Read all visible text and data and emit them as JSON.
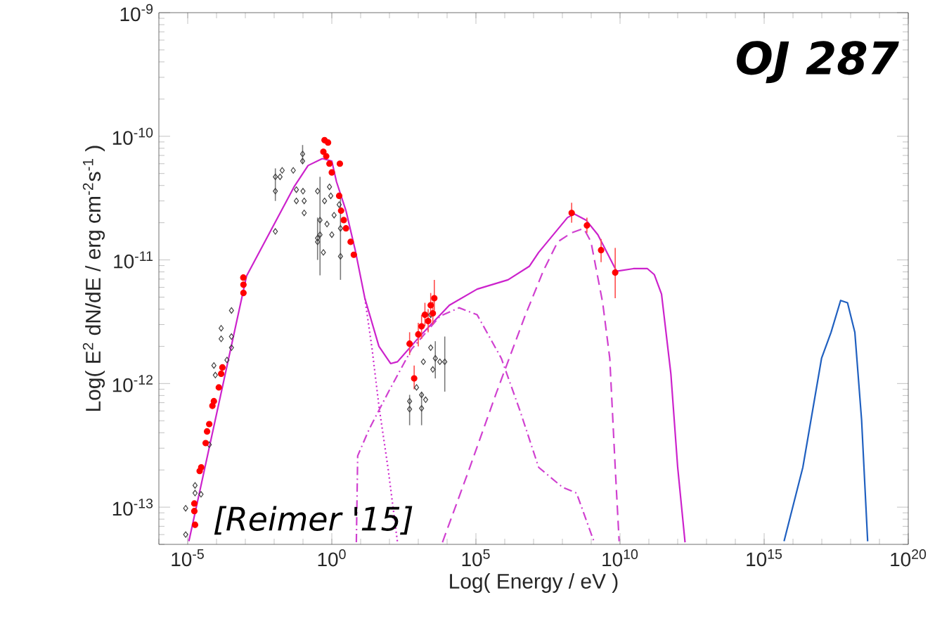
{
  "chart_data": {
    "type": "line",
    "xlabel": "Log( Energy / eV )",
    "ylabel": "Log( E$^{2}$ dN/dE /  erg cm$^{-2}$s$^{-1}$ )",
    "log": "xy",
    "grid": false,
    "xlim": [
      1e-06,
      1e+20
    ],
    "ylim": [
      5e-14,
      1e-09
    ],
    "xticks": [
      {
        "value": 1e-05,
        "label": "10$^{-5}$"
      },
      {
        "value": 1,
        "label": "10$^{0}$"
      },
      {
        "value": 100000.0,
        "label": "10$^{5}$"
      },
      {
        "value": 10000000000.0,
        "label": "10$^{10}$"
      },
      {
        "value": 1000000000000000.0,
        "label": "10$^{15}$"
      },
      {
        "value": 1e+20,
        "label": "10$^{20}$"
      }
    ],
    "yticks": [
      {
        "value": 1e-13,
        "label": "10$^{-13}$"
      },
      {
        "value": 1e-12,
        "label": "10$^{-12}$"
      },
      {
        "value": 1e-11,
        "label": "10$^{-11}$"
      },
      {
        "value": 1e-10,
        "label": "10$^{-10}$"
      },
      {
        "value": 1e-09,
        "label": "10$^{-9}$"
      }
    ],
    "annotations": [
      "OJ 287",
      "[Reimer '15]"
    ],
    "series": [
      {
        "color": "#cc22cc",
        "line_style": "solid",
        "marker": "none",
        "x": [
          1.1e-05,
          0.0011,
          0.049,
          0.15,
          0.47,
          1,
          1.45,
          3.1,
          6.5,
          14,
          43,
          110,
          190,
          1300,
          12000,
          110000,
          1300000.0,
          7200000.0,
          15000000.0,
          150000000.0,
          260000000.0,
          660000000.0,
          1700000000.0,
          7600000000.0,
          29000000000.0,
          89000000000.0,
          155000000000.0,
          275000000000.0,
          580000000000.0,
          1000000000000.0,
          1800000000000.0
        ],
        "values": [
          5.3e-14,
          7.4e-12,
          3.9e-11,
          5.8e-11,
          6.6e-11,
          6.3e-11,
          4.3e-11,
          2.5e-11,
          1.2e-11,
          4.9e-12,
          2e-12,
          1.45e-12,
          1.5e-12,
          2.5e-12,
          4.3e-12,
          5.8e-12,
          6.9e-12,
          8.9e-12,
          1.15e-11,
          2.2e-11,
          2.35e-11,
          2.1e-11,
          1.6e-11,
          8.1e-12,
          8.5e-12,
          8.5e-12,
          7.6e-12,
          5.3e-12,
          1.2e-12,
          2.1e-13,
          5.2e-14
        ]
      },
      {
        "color": "#cc22cc",
        "line_style": "dotted",
        "marker": "none",
        "x": [
          14,
          25,
          43,
          91,
          190
        ],
        "values": [
          4.9e-12,
          1.9e-12,
          6.6e-13,
          2e-13,
          5.2e-14
        ]
      },
      {
        "color": "#d040d0",
        "line_style": "dashdot",
        "marker": "none",
        "x": [
          7.1,
          7.9,
          20,
          91,
          590,
          5600,
          26000,
          110000,
          760000,
          3400000.0,
          15000000.0,
          100000000.0,
          310000000.0,
          1200000000.0
        ],
        "values": [
          5.2e-14,
          2.6e-13,
          4.3e-13,
          8.5e-13,
          1.9e-12,
          3.5e-12,
          4.1e-12,
          3.6e-12,
          1.6e-12,
          6e-13,
          2.1e-13,
          1.45e-13,
          1.3e-13,
          5.4e-14
        ]
      },
      {
        "color": "#d040d0",
        "line_style": "dashed",
        "marker": "none",
        "x": [
          6900,
          55000,
          520000,
          5000000.0,
          22000000.0,
          69000000.0,
          210000000.0,
          550000000.0,
          980000000.0,
          2500000000.0,
          4400000000.0,
          6800000000.0,
          9300000000.0
        ],
        "values": [
          5.2e-14,
          1.95e-13,
          8.5e-13,
          3.5e-12,
          8.2e-12,
          1.4e-11,
          1.66e-11,
          1.8e-11,
          1.4e-11,
          4.5e-12,
          1.6e-12,
          2.1e-13,
          5.3e-14
        ]
      },
      {
        "color": "#2060c0",
        "line_style": "solid",
        "marker": "none",
        "x": [
          4900000000000000.0,
          2.2e+16,
          9.8e+16,
          2.1e+17,
          4.5e+17,
          7.8e+17,
          1.4e+18,
          2.4e+18,
          3.9e+18
        ],
        "values": [
          5.3e-14,
          2.1e-13,
          1.6e-12,
          2.6e-12,
          4.7e-12,
          4.5e-12,
          2.6e-12,
          5.1e-13,
          5.3e-14
        ]
      },
      {
        "type": "scatter",
        "color": "#404040",
        "marker": "diamond",
        "x": [
          8.5e-06,
          8.5e-06,
          1.8e-05,
          1.8e-05,
          2.9e-05,
          3.9e-05,
          5.6e-05,
          8.1e-05,
          9.1e-05,
          0.000145,
          0.000145,
          0.00023,
          0.00033,
          0.00033,
          0.00033,
          0.011,
          0.016,
          0.011,
          0.019,
          0.011,
          0.046,
          0.059,
          0.059,
          0.097,
          0.097,
          0.1,
          0.11,
          0.11,
          0.32,
          0.32,
          0.39,
          0.51,
          0.56,
          0.68,
          0.83,
          0.92,
          1.0,
          1.2,
          1.8,
          2.0,
          2.0,
          0.32,
          0.39,
          500,
          500,
          870,
          1300,
          1800,
          1300,
          2700,
          3900,
          5600,
          8300,
          3200,
          1500,
          2700
        ],
        "values": [
          6e-14,
          9.8e-14,
          1.5e-13,
          1.3e-13,
          1.27e-13,
          null,
          3.2e-13,
          1.4e-12,
          1.17e-12,
          2.8e-12,
          2.3e-12,
          1.55e-12,
          3.9e-12,
          2.4e-12,
          1.95e-12,
          4.7e-11,
          4.7e-11,
          3.6e-11,
          5.3e-11,
          1.7e-11,
          5.3e-11,
          3.7e-11,
          3e-11,
          7.2e-11,
          6.3e-11,
          3.6e-11,
          3e-11,
          2.4e-11,
          3.6e-11,
          1.5e-11,
          2.1e-11,
          1.15e-11,
          3e-11,
          1.95e-11,
          3.9e-11,
          3.3e-11,
          1.6e-11,
          2.3e-11,
          2.8e-11,
          1.8e-11,
          1.07e-11,
          1.4e-11,
          1.6e-11,
          7.2e-13,
          6.2e-13,
          9.3e-13,
          8.1e-13,
          7.4e-13,
          6.3e-13,
          1.95e-12,
          1.6e-12,
          1.5e-12,
          1.5e-12,
          1.3e-12,
          1.5e-12,
          3.6e-12
        ],
        "errors": [
          null,
          null,
          null,
          null,
          null,
          null,
          null,
          null,
          null,
          null,
          null,
          null,
          null,
          null,
          null,
          null,
          null,
          [
            3e-11,
            5.5e-11
          ],
          null,
          null,
          null,
          null,
          null,
          [
            6e-11,
            8.5e-11
          ],
          null,
          null,
          null,
          null,
          null,
          [
            1e-11,
            2.2e-11
          ],
          [
            7.5e-12,
            4.7e-11
          ],
          null,
          null,
          null,
          null,
          null,
          null,
          null,
          null,
          [
            6.9e-12,
            3.3e-11
          ],
          null,
          null,
          null,
          null,
          [
            4.6e-13,
            8.1e-13
          ],
          null,
          null,
          null,
          [
            4.6e-13,
            8.5e-13
          ],
          null,
          [
            1.1e-12,
            2.2e-12
          ],
          null,
          [
            8.6e-13,
            2.4e-12
          ],
          null,
          null,
          null
        ]
      },
      {
        "type": "scatter",
        "color": "#ff0000",
        "marker": "circle",
        "x": [
          1.7e-05,
          1.8e-05,
          1.7e-05,
          2.6e-05,
          2.95e-05,
          4.2e-05,
          4.7e-05,
          5.6e-05,
          7.2e-05,
          8.1e-05,
          0.00012,
          0.000145,
          0.00016,
          0.00085,
          0.00086,
          0.00086,
          0.56,
          0.74,
          0.51,
          0.64,
          0.83,
          1.9,
          1.0,
          1.8,
          2.1,
          2.6,
          3.1,
          4.5,
          5.8,
          500,
          720,
          1000,
          1300,
          1700,
          2200,
          2700,
          3600,
          3200,
          210000000.0,
          710000000.0,
          2200000000.0,
          6800000000.0
        ],
        "values": [
          9.3e-14,
          7.2e-14,
          1.07e-13,
          1.96e-13,
          2.1e-13,
          3.3e-13,
          4.1e-13,
          4.7e-13,
          6.6e-13,
          7.2e-13,
          9.3e-13,
          1.2e-12,
          1.35e-12,
          7.2e-12,
          6.3e-12,
          5.4e-12,
          9.3e-11,
          8.9e-11,
          7.5e-11,
          6.9e-11,
          6e-11,
          6e-11,
          5.1e-11,
          3.3e-11,
          2.5e-11,
          2.1e-11,
          1.8e-11,
          1.4e-11,
          1.1e-11,
          2.1e-12,
          1.1e-12,
          2.5e-12,
          2.9e-12,
          3.6e-12,
          3.2e-12,
          4.3e-12,
          4.9e-12,
          3.7e-12,
          2.4e-11,
          1.9e-11,
          1.2e-11,
          7.9e-12
        ],
        "errors": [
          null,
          null,
          null,
          null,
          null,
          null,
          null,
          null,
          null,
          null,
          null,
          null,
          null,
          null,
          null,
          null,
          null,
          null,
          null,
          null,
          null,
          null,
          null,
          null,
          null,
          null,
          null,
          null,
          null,
          [
            1.7e-12,
            2.6e-12
          ],
          [
            9e-13,
            1.4e-12
          ],
          [
            2e-12,
            3.1e-12
          ],
          [
            2.3e-12,
            3.6e-12
          ],
          [
            2.9e-12,
            4.5e-12
          ],
          [
            2.6e-12,
            4e-12
          ],
          [
            3.4e-12,
            5.4e-12
          ],
          [
            3.9e-12,
            6.9e-12
          ],
          [
            3e-12,
            4.6e-12
          ],
          [
            2e-11,
            2.9e-11
          ],
          [
            1.66e-11,
            2.2e-11
          ],
          [
            9.6e-12,
            1.48e-11
          ],
          [
            4.9e-12,
            1.25e-11
          ]
        ]
      }
    ]
  }
}
